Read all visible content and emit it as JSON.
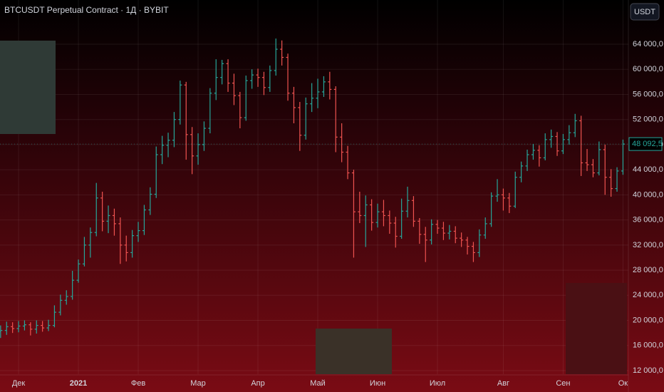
{
  "chart_data": {
    "type": "ohlc",
    "title": "BTCUSDT Perpetual Contract · 1Д · BYBIT",
    "currency_button": "USDT",
    "up_color": "#26a69a",
    "down_color": "#ef5350",
    "grid": true,
    "categories": [
      null,
      null,
      null,
      "Дек",
      null,
      null,
      null,
      null,
      null,
      null,
      null,
      null,
      null,
      "2021",
      null,
      null,
      null,
      null,
      null,
      null,
      null,
      null,
      null,
      "Фев",
      null,
      null,
      null,
      null,
      null,
      null,
      null,
      null,
      null,
      "Мар",
      null,
      null,
      null,
      null,
      null,
      null,
      null,
      null,
      null,
      "Апр",
      null,
      null,
      null,
      null,
      null,
      null,
      null,
      null,
      null,
      "Май",
      null,
      null,
      null,
      null,
      null,
      null,
      null,
      null,
      null,
      "Июн",
      null,
      null,
      null,
      null,
      null,
      null,
      null,
      null,
      null,
      "Июл",
      null,
      null,
      null,
      null,
      null,
      null,
      null,
      null,
      null,
      null,
      "Авг",
      null,
      null,
      null,
      null,
      null,
      null,
      null,
      null,
      null,
      "Сен",
      null,
      null,
      null,
      null,
      null,
      null,
      null,
      null,
      null,
      "Ок"
    ],
    "open": [
      18200,
      18400,
      19000,
      18700,
      19100,
      19300,
      18600,
      19200,
      18800,
      19200,
      21300,
      23200,
      23800,
      26400,
      29000,
      32000,
      34000,
      39500,
      35800,
      36700,
      35400,
      32000,
      30800,
      33500,
      34300,
      37600,
      40100,
      46400,
      47900,
      48700,
      52000,
      57500,
      49600,
      46200,
      48000,
      50600,
      56200,
      58700,
      60900,
      57800,
      55800,
      52300,
      58200,
      59100,
      58700,
      57100,
      59800,
      63200,
      61900,
      56200,
      53900,
      49500,
      54500,
      55400,
      56400,
      58000,
      56800,
      49200,
      46800,
      43500,
      37300,
      36700,
      38400,
      35600,
      37300,
      36700,
      35500,
      33400,
      37400,
      39100,
      35800,
      33700,
      32800,
      35300,
      34700,
      33900,
      34200,
      33100,
      32800,
      31800,
      30800,
      33600,
      35400,
      39800,
      40000,
      39500,
      38200,
      42800,
      44600,
      46400,
      47100,
      45900,
      48800,
      49300,
      47000,
      48800,
      49900,
      51800,
      45100,
      44800,
      43500,
      47200,
      42800,
      41000,
      43800
    ],
    "high": [
      19200,
      19800,
      19700,
      19900,
      20000,
      19700,
      20000,
      19900,
      20100,
      22400,
      24100,
      24800,
      27900,
      29700,
      33300,
      34800,
      41900,
      40500,
      38300,
      37800,
      36400,
      33500,
      34400,
      35700,
      38400,
      41200,
      47700,
      49400,
      49900,
      53200,
      58200,
      58000,
      50800,
      49800,
      51700,
      57000,
      61600,
      61500,
      61600,
      59300,
      56400,
      59000,
      60000,
      60100,
      59600,
      60600,
      64900,
      64600,
      62500,
      57200,
      54800,
      55500,
      57800,
      58500,
      58900,
      59600,
      57300,
      51400,
      47800,
      44000,
      40500,
      39900,
      39300,
      38600,
      39200,
      37500,
      36500,
      39400,
      41300,
      39800,
      36300,
      34900,
      36100,
      36000,
      35700,
      35200,
      35000,
      34000,
      33300,
      32500,
      34500,
      36400,
      40400,
      42500,
      41000,
      40300,
      43700,
      45300,
      47200,
      48100,
      47900,
      49800,
      50400,
      50000,
      49700,
      51100,
      52900,
      52600,
      47300,
      45700,
      48500,
      48000,
      44100,
      44400,
      48800
    ],
    "low": [
      17200,
      17700,
      18000,
      18100,
      18400,
      17600,
      17900,
      18200,
      18300,
      18900,
      20800,
      22500,
      23300,
      26000,
      28600,
      30000,
      33400,
      34200,
      33900,
      33500,
      29000,
      29400,
      30000,
      32500,
      33600,
      36800,
      39500,
      44900,
      46000,
      47600,
      51200,
      45600,
      43300,
      44800,
      47000,
      49800,
      55100,
      57600,
      56400,
      54300,
      50600,
      51800,
      56900,
      57200,
      55900,
      56400,
      59000,
      60600,
      55000,
      51400,
      47000,
      48800,
      53200,
      53800,
      55600,
      55200,
      46800,
      45200,
      42500,
      30000,
      35500,
      31700,
      34300,
      34800,
      35000,
      33800,
      31600,
      33000,
      36400,
      34900,
      32200,
      29300,
      32100,
      33800,
      32800,
      32900,
      32300,
      31700,
      30500,
      29300,
      30100,
      33000,
      34900,
      38900,
      37500,
      37100,
      37900,
      42000,
      43800,
      45600,
      44500,
      45500,
      47500,
      46200,
      46500,
      48000,
      49200,
      43000,
      43800,
      42800,
      43100,
      40000,
      39700,
      40500,
      43200
    ],
    "close": [
      18400,
      19000,
      18700,
      19100,
      19300,
      18600,
      19200,
      18800,
      19200,
      21300,
      23200,
      23800,
      26400,
      29000,
      32000,
      34000,
      39500,
      35800,
      36700,
      35400,
      32000,
      30800,
      33500,
      34300,
      37600,
      40100,
      46400,
      47900,
      48700,
      52000,
      57500,
      49600,
      46200,
      48000,
      50600,
      56200,
      58700,
      60900,
      57800,
      55800,
      52300,
      58200,
      59100,
      58700,
      57100,
      59800,
      63200,
      61900,
      56200,
      53900,
      49500,
      54500,
      55400,
      56400,
      58000,
      56800,
      49200,
      46800,
      43500,
      37300,
      36700,
      38400,
      35600,
      37300,
      36700,
      35500,
      33400,
      37400,
      39100,
      35800,
      33700,
      32800,
      35300,
      34700,
      33900,
      34200,
      33100,
      32800,
      31800,
      30800,
      33600,
      35400,
      39800,
      40000,
      39500,
      38200,
      42800,
      44600,
      46400,
      47100,
      45900,
      48800,
      49300,
      47000,
      48800,
      49900,
      51800,
      45100,
      44800,
      43500,
      47200,
      42800,
      41000,
      43800,
      48092.5
    ],
    "last_price": {
      "value": 48092.5,
      "label": "48 092,5"
    },
    "ylim": [
      11432,
      71040
    ],
    "yticks": [
      {
        "value": 12000,
        "label": "12 000,0"
      },
      {
        "value": 16000,
        "label": "16 000,0"
      },
      {
        "value": 20000,
        "label": "20 000,0"
      },
      {
        "value": 24000,
        "label": "24 000,0"
      },
      {
        "value": 28000,
        "label": "28 000,0"
      },
      {
        "value": 32000,
        "label": "32 000,0"
      },
      {
        "value": 36000,
        "label": "36 000,0"
      },
      {
        "value": 40000,
        "label": "40 000,0"
      },
      {
        "value": 44000,
        "label": "44 000,0"
      },
      {
        "value": 48000,
        "label": "48 000,0"
      },
      {
        "value": 52000,
        "label": "52 000,0"
      },
      {
        "value": 56000,
        "label": "56 000,0"
      },
      {
        "value": 60000,
        "label": "60 000,0"
      },
      {
        "value": 64000,
        "label": "64 000,0"
      }
    ]
  }
}
